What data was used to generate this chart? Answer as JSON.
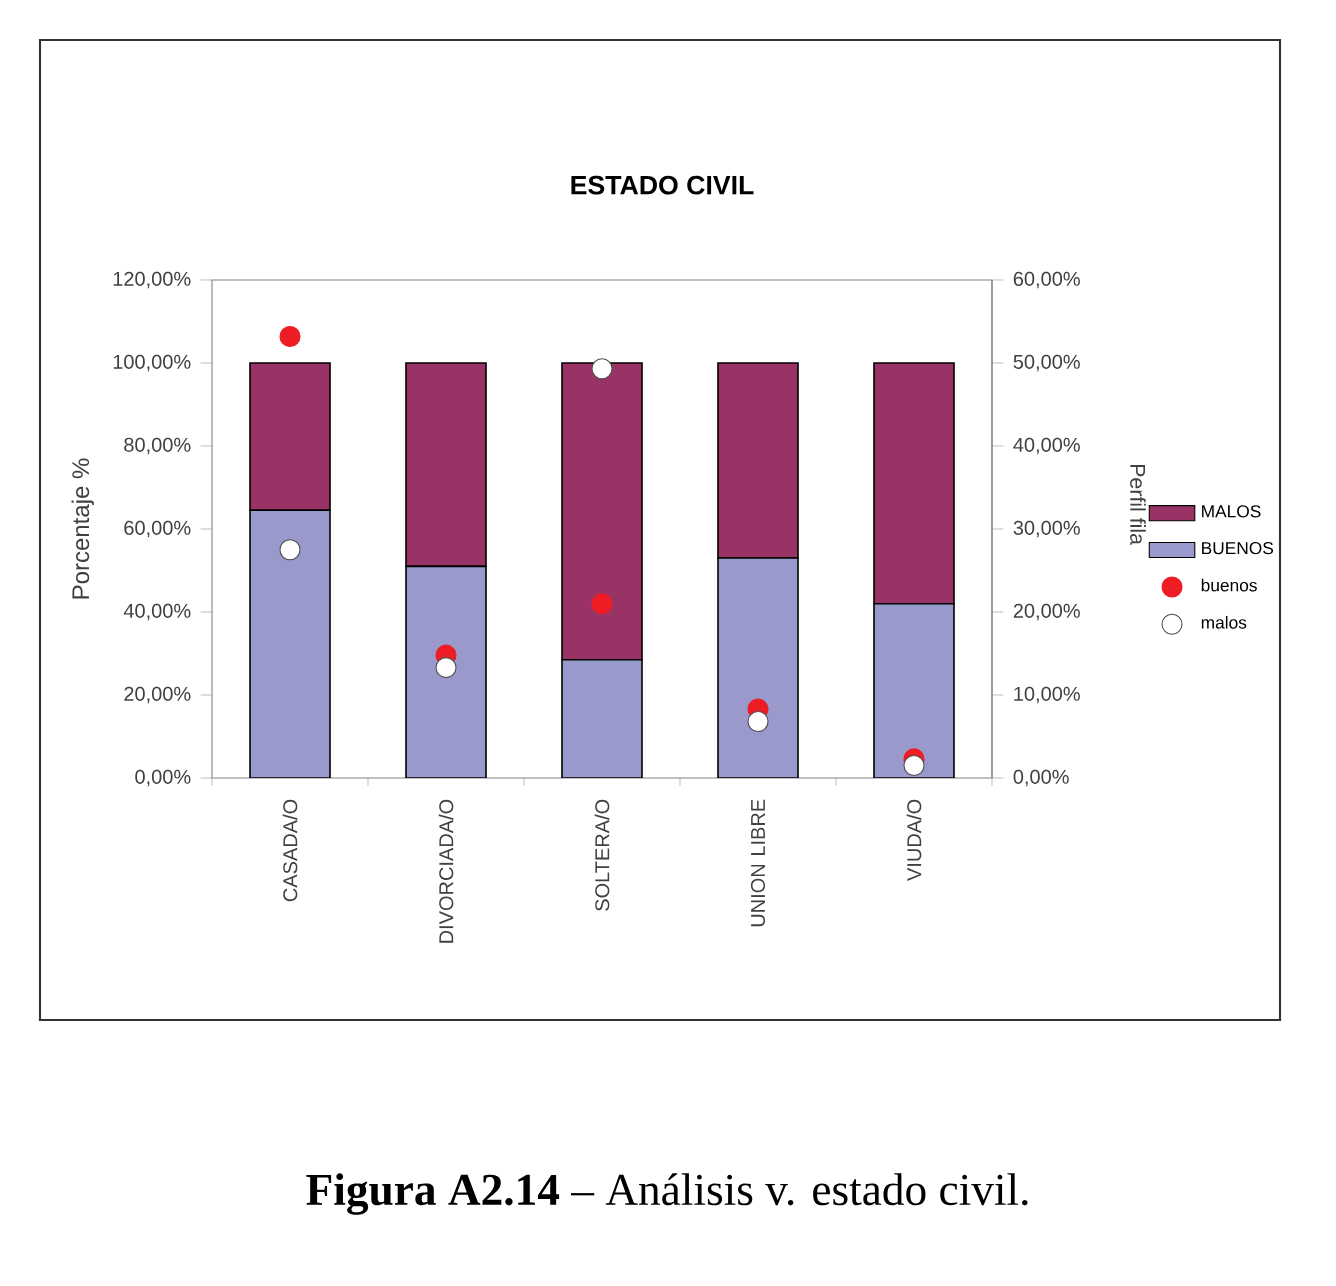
{
  "chart_data": {
    "type": "bar",
    "stacked": true,
    "title": "ESTADO CIVIL",
    "ylabel": "Porcentaje %",
    "y2label": "Perfil fila",
    "categories": [
      "CASADA/O",
      "DIVORCIADA/O",
      "SOLTERA/O",
      "UNION LIBRE",
      "VIUDA/O"
    ],
    "series": [
      {
        "name": "BUENOS",
        "type": "bar",
        "color": "#9999cc",
        "values": [
          64.5,
          51,
          28.5,
          53,
          42
        ]
      },
      {
        "name": "MALOS",
        "type": "bar",
        "color": "#993366",
        "values": [
          35.5,
          49,
          71.5,
          47,
          58
        ]
      },
      {
        "name": "buenos",
        "type": "scatter",
        "axis": "y2",
        "color": "#ee1c24",
        "values": [
          53.2,
          14.8,
          21,
          8.3,
          2.3
        ]
      },
      {
        "name": "malos",
        "type": "scatter",
        "axis": "y2",
        "color": "#ffffff",
        "values": [
          27.5,
          13.3,
          49.3,
          6.8,
          1.5
        ]
      }
    ],
    "ylim": [
      0,
      120
    ],
    "yticks": [
      {
        "value": 0,
        "label": "0,00%"
      },
      {
        "value": 20,
        "label": "20,00%"
      },
      {
        "value": 40,
        "label": "40,00%"
      },
      {
        "value": 60,
        "label": "60,00%"
      },
      {
        "value": 80,
        "label": "80,00%"
      },
      {
        "value": 100,
        "label": "100,00%"
      },
      {
        "value": 120,
        "label": "120,00%"
      }
    ],
    "y2lim": [
      0,
      60
    ],
    "y2ticks": [
      {
        "value": 0,
        "label": "0,00%"
      },
      {
        "value": 10,
        "label": "10,00%"
      },
      {
        "value": 20,
        "label": "20,00%"
      },
      {
        "value": 30,
        "label": "30,00%"
      },
      {
        "value": 40,
        "label": "40,00%"
      },
      {
        "value": 50,
        "label": "50,00%"
      },
      {
        "value": 60,
        "label": "60,00%"
      }
    ],
    "legend": "right",
    "annotations": [
      "**Figura A2.14** – Análisis v. estado civil."
    ]
  }
}
